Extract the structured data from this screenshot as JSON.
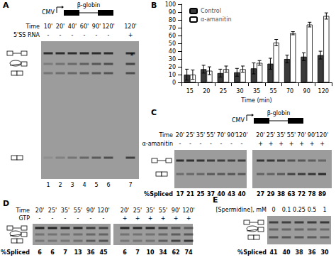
{
  "chart_data": {
    "type": "bar",
    "categories": [
      15,
      20,
      25,
      30,
      35,
      55,
      70,
      90,
      120
    ],
    "x_label": "Time (min)",
    "ylim": [
      0,
      100
    ],
    "yticks": [
      0,
      10,
      20,
      30,
      40,
      50,
      60,
      70,
      80,
      90,
      100
    ],
    "grid": false,
    "legend": "top-left",
    "series": [
      {
        "name": "Control",
        "color": "#3a3a3a",
        "values": [
          10,
          17,
          12,
          13,
          18,
          24,
          30,
          33,
          35
        ],
        "errors": [
          7,
          5,
          5,
          5,
          7,
          7,
          5,
          5,
          5
        ]
      },
      {
        "name": "α-amanitin",
        "color": "#ffffff",
        "values": [
          10,
          15,
          17,
          17,
          25,
          51,
          63,
          74,
          85
        ],
        "errors": [
          6,
          5,
          4,
          4,
          3,
          4,
          2,
          3,
          4
        ]
      }
    ]
  },
  "panels": {
    "A": {
      "label": "A",
      "promoter": "CMV",
      "gene": "β-globin",
      "rows": [
        {
          "name": "Time",
          "values": [
            "10'",
            "20'",
            "40'",
            "60'",
            "90'",
            "120'",
            "120'"
          ]
        },
        {
          "name": "5'SS RNA",
          "values": [
            "-",
            "-",
            "-",
            "-",
            "-",
            "-",
            "+"
          ]
        }
      ],
      "lanes": [
        "1",
        "2",
        "3",
        "4",
        "5",
        "6",
        "7"
      ],
      "annotation": "*"
    },
    "B": {
      "label": "B"
    },
    "C": {
      "label": "C",
      "promoter": "CMV",
      "gene": "β-globin",
      "rows": [
        {
          "name": "Time",
          "values": [
            "20'",
            "25'",
            "35'",
            "55'",
            "70'",
            "90'",
            "120'",
            "20'",
            "25'",
            "35'",
            "55'",
            "70'",
            "90'",
            "120'"
          ]
        },
        {
          "name": "α-amanitin",
          "values": [
            "-",
            "-",
            "-",
            "-",
            "-",
            "-",
            "-",
            "+",
            "+",
            "+",
            "+",
            "+",
            "+",
            "+"
          ]
        }
      ],
      "spliced_label": "%Spliced",
      "spliced": [
        17,
        21,
        25,
        37,
        40,
        43,
        40,
        27,
        29,
        38,
        63,
        72,
        78,
        89
      ]
    },
    "D": {
      "label": "D",
      "rows": [
        {
          "name": "Time",
          "values": [
            "20'",
            "25'",
            "35'",
            "55'",
            "90'",
            "120'",
            "20'",
            "25'",
            "35'",
            "55'",
            "90'",
            "120'"
          ]
        },
        {
          "name": "GTP",
          "values": [
            "-",
            "-",
            "-",
            "-",
            "-",
            "-",
            "+",
            "+",
            "+",
            "+",
            "+",
            "+"
          ]
        }
      ],
      "spliced_label": "%Spliced",
      "spliced": [
        6,
        6,
        7,
        13,
        36,
        45,
        6,
        7,
        10,
        34,
        62,
        74
      ]
    },
    "E": {
      "label": "E",
      "rows": [
        {
          "name": "[Spermidine], mM",
          "values": [
            "0",
            "0.1",
            "0.25",
            "0.5",
            "1"
          ]
        }
      ],
      "spliced_label": "%Spliced",
      "spliced": [
        41,
        40,
        38,
        36,
        30
      ]
    }
  }
}
